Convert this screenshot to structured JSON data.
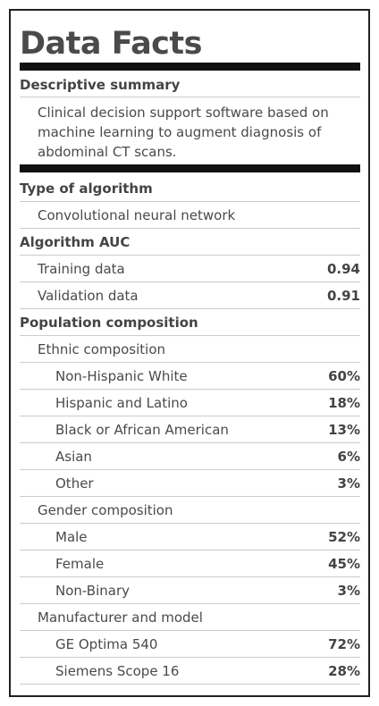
{
  "title": "Data Facts",
  "summary": {
    "heading": "Descriptive summary",
    "text": "Clinical decision support software based on machine learning to augment diagnosis of abdominal CT scans."
  },
  "algorithm_type": {
    "heading": "Type of algorithm",
    "value": "Convolutional neural network"
  },
  "auc": {
    "heading": "Algorithm AUC",
    "rows": [
      {
        "label": "Training data",
        "value": "0.94"
      },
      {
        "label": "Validation data",
        "value": "0.91"
      }
    ]
  },
  "population": {
    "heading": "Population composition",
    "ethnic": {
      "heading": "Ethnic composition",
      "rows": [
        {
          "label": "Non-Hispanic White",
          "value": "60%"
        },
        {
          "label": "Hispanic and Latino",
          "value": "18%"
        },
        {
          "label": "Black or African American",
          "value": "13%"
        },
        {
          "label": "Asian",
          "value": "6%"
        },
        {
          "label": "Other",
          "value": "3%"
        }
      ]
    },
    "gender": {
      "heading": "Gender composition",
      "rows": [
        {
          "label": "Male",
          "value": "52%"
        },
        {
          "label": "Female",
          "value": "45%"
        },
        {
          "label": "Non-Binary",
          "value": "3%"
        }
      ]
    },
    "manufacturer": {
      "heading": "Manufacturer and model",
      "rows": [
        {
          "label": "GE Optima 540",
          "value": "72%"
        },
        {
          "label": "Siemens Scope 16",
          "value": "28%"
        }
      ]
    }
  }
}
